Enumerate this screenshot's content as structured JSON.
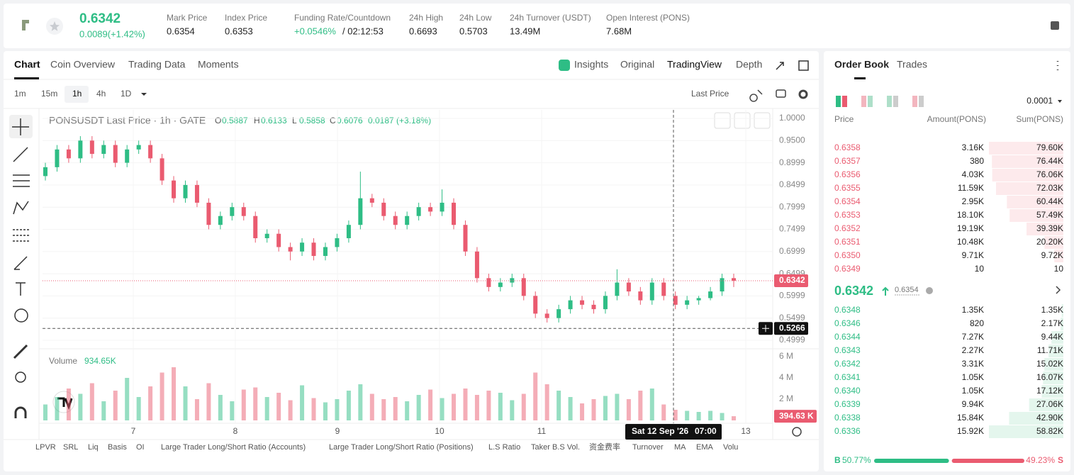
{
  "header": {
    "price": "0.6342",
    "change": "0.0089(+1.42%)",
    "stats": [
      {
        "label": "Mark Price",
        "value": "0.6354"
      },
      {
        "label": "Index Price",
        "value": "0.6353"
      },
      {
        "label": "24h High",
        "value": "0.6693"
      },
      {
        "label": "24h Low",
        "value": "0.5703"
      },
      {
        "label": "24h Turnover (USDT)",
        "value": "13.49M"
      },
      {
        "label": "Open Interest (PONS)",
        "value": "7.68M"
      }
    ],
    "funding": {
      "label": "Funding Rate/Countdown",
      "rate": "+0.0546%",
      "countdown": "/ 02:12:53"
    }
  },
  "tabs": [
    "Chart",
    "Coin Overview",
    "Trading Data",
    "Moments"
  ],
  "view_tabs": [
    "Insights",
    "Original",
    "TradingView",
    "Depth"
  ],
  "intervals": [
    "1m",
    "15m",
    "1h",
    "4h",
    "1D"
  ],
  "price_type": "Last Price",
  "legend": {
    "symbol": "PONSUSDT Last Price · 1h · GATE",
    "ohlc": [
      {
        "k": "O",
        "v": "0.5887"
      },
      {
        "k": "H",
        "v": "0.6133"
      },
      {
        "k": "L",
        "v": "0.5858"
      },
      {
        "k": "C",
        "v": "0.6076"
      }
    ],
    "change": "0.0187 (+3.18%)"
  },
  "volume_legend": {
    "label": "Volume",
    "value": "934.65K"
  },
  "indicators": [
    "LPVR",
    "SRL",
    "Liq",
    "Basis",
    "OI",
    "Large Trader Long/Short Ratio (Accounts)",
    "Large Trader Long/Short Ratio (Positions)",
    "L.S Ratio",
    "Taker B.S Vol.",
    "资金费率",
    "Turnover",
    "MA",
    "EMA",
    "Volu"
  ],
  "chart_data": {
    "type": "candlestick",
    "ylim": [
      0.4999,
      1.0
    ],
    "yticks": [
      {
        "value": 1,
        "label": "1.0000"
      },
      {
        "value": 0.95,
        "label": "0.9500"
      },
      0.8999,
      0.8499,
      0.7999,
      0.7499,
      0.6999,
      0.6499,
      0.5999,
      0.5499,
      0.4999
    ],
    "x_labels": [
      "7",
      "8",
      "9",
      "10",
      "11",
      "13"
    ],
    "crosshair": {
      "date": "Sat 12 Sep '26",
      "time": "07:00",
      "price": 0.5266
    },
    "last_price": 0.6342,
    "last_price_label": "0.6342",
    "crosshair_price_label": "0.5266",
    "up_color": "#2ebd85",
    "down_color": "#ea5b70",
    "open": [
      0.87,
      0.89,
      0.93,
      0.91,
      0.95,
      0.92,
      0.94,
      0.9,
      0.93,
      0.94,
      0.91,
      0.86,
      0.82,
      0.85,
      0.81,
      0.76,
      0.78,
      0.8,
      0.78,
      0.73,
      0.74,
      0.71,
      0.7,
      0.72,
      0.69,
      0.71,
      0.73,
      0.76,
      0.82,
      0.81,
      0.78,
      0.76,
      0.78,
      0.8,
      0.79,
      0.81,
      0.76,
      0.7,
      0.64,
      0.62,
      0.63,
      0.64,
      0.6,
      0.56,
      0.55,
      0.57,
      0.59,
      0.58,
      0.57,
      0.6,
      0.63,
      0.61,
      0.59,
      0.63,
      0.6,
      0.58,
      0.59,
      0.595,
      0.61,
      0.64
    ],
    "high": [
      0.9,
      0.94,
      0.94,
      0.96,
      0.96,
      0.95,
      0.95,
      0.94,
      0.95,
      0.95,
      0.92,
      0.87,
      0.86,
      0.86,
      0.82,
      0.79,
      0.81,
      0.81,
      0.79,
      0.75,
      0.75,
      0.72,
      0.73,
      0.73,
      0.72,
      0.74,
      0.77,
      0.88,
      0.83,
      0.82,
      0.79,
      0.79,
      0.81,
      0.81,
      0.84,
      0.82,
      0.77,
      0.71,
      0.65,
      0.64,
      0.65,
      0.65,
      0.61,
      0.57,
      0.58,
      0.6,
      0.6,
      0.59,
      0.61,
      0.66,
      0.64,
      0.62,
      0.64,
      0.64,
      0.61,
      0.6,
      0.6,
      0.62,
      0.65,
      0.65
    ],
    "low": [
      0.86,
      0.88,
      0.9,
      0.9,
      0.91,
      0.91,
      0.89,
      0.89,
      0.92,
      0.9,
      0.85,
      0.81,
      0.81,
      0.8,
      0.75,
      0.75,
      0.77,
      0.77,
      0.72,
      0.72,
      0.7,
      0.68,
      0.69,
      0.68,
      0.68,
      0.7,
      0.72,
      0.75,
      0.8,
      0.77,
      0.75,
      0.75,
      0.77,
      0.78,
      0.78,
      0.75,
      0.69,
      0.63,
      0.61,
      0.61,
      0.62,
      0.59,
      0.55,
      0.54,
      0.54,
      0.56,
      0.57,
      0.56,
      0.56,
      0.59,
      0.6,
      0.58,
      0.58,
      0.59,
      0.57,
      0.57,
      0.58,
      0.59,
      0.6,
      0.62
    ],
    "close": [
      0.89,
      0.93,
      0.91,
      0.95,
      0.92,
      0.94,
      0.9,
      0.93,
      0.94,
      0.91,
      0.86,
      0.82,
      0.85,
      0.81,
      0.76,
      0.78,
      0.8,
      0.78,
      0.73,
      0.74,
      0.71,
      0.7,
      0.72,
      0.69,
      0.71,
      0.73,
      0.76,
      0.82,
      0.81,
      0.78,
      0.76,
      0.78,
      0.8,
      0.79,
      0.81,
      0.76,
      0.7,
      0.64,
      0.62,
      0.63,
      0.64,
      0.6,
      0.56,
      0.55,
      0.57,
      0.59,
      0.58,
      0.57,
      0.6,
      0.63,
      0.61,
      0.59,
      0.63,
      0.6,
      0.58,
      0.59,
      0.595,
      0.61,
      0.64,
      0.6342
    ],
    "volume": [
      1.5,
      2.2,
      3.0,
      2.5,
      3.5,
      1.8,
      2.8,
      4.0,
      2.2,
      3.2,
      4.5,
      5.0,
      3.2,
      2.0,
      3.5,
      2.4,
      1.8,
      2.9,
      3.1,
      2.2,
      2.6,
      1.9,
      3.3,
      2.1,
      1.7,
      2.0,
      2.8,
      3.4,
      2.5,
      2.0,
      2.2,
      1.8,
      2.4,
      2.9,
      2.1,
      2.5,
      3.0,
      2.4,
      2.8,
      2.6,
      1.9,
      2.5,
      4.5,
      3.4,
      2.8,
      2.2,
      1.6,
      2.0,
      2.3,
      2.5,
      2.0,
      2.8,
      3.0,
      1.5,
      1.0,
      0.9,
      0.8,
      0.9,
      0.7,
      0.39463
    ],
    "volume_last_label": "394.63 K",
    "vlim": [
      0,
      6
    ],
    "vticks": [
      {
        "value": 6,
        "label": "6 M"
      },
      {
        "value": 4,
        "label": "4 M"
      },
      {
        "value": 2,
        "label": "2 M"
      }
    ]
  },
  "order_book": {
    "tabs": [
      "Order Book",
      "Trades"
    ],
    "precision": "0.0001",
    "columns": [
      "Price",
      "Amount(PONS)",
      "Sum(PONS)"
    ],
    "asks": [
      {
        "price": "0.6358",
        "amount": "3.16K",
        "sum": "79.60K",
        "depth": 79.6
      },
      {
        "price": "0.6357",
        "amount": "380",
        "sum": "76.44K",
        "depth": 76.44
      },
      {
        "price": "0.6356",
        "amount": "4.03K",
        "sum": "76.06K",
        "depth": 76.06
      },
      {
        "price": "0.6355",
        "amount": "11.59K",
        "sum": "72.03K",
        "depth": 72.03
      },
      {
        "price": "0.6354",
        "amount": "2.95K",
        "sum": "60.44K",
        "depth": 60.44
      },
      {
        "price": "0.6353",
        "amount": "18.10K",
        "sum": "57.49K",
        "depth": 57.49
      },
      {
        "price": "0.6352",
        "amount": "19.19K",
        "sum": "39.39K",
        "depth": 39.39
      },
      {
        "price": "0.6351",
        "amount": "10.48K",
        "sum": "20.20K",
        "depth": 20.2
      },
      {
        "price": "0.6350",
        "amount": "9.71K",
        "sum": "9.72K",
        "depth": 9.72
      },
      {
        "price": "0.6349",
        "amount": "10",
        "sum": "10",
        "depth": 0.01
      }
    ],
    "last": "0.6342",
    "mark": "0.6354",
    "bids": [
      {
        "price": "0.6348",
        "amount": "1.35K",
        "sum": "1.35K",
        "depth": 1.35
      },
      {
        "price": "0.6346",
        "amount": "820",
        "sum": "2.17K",
        "depth": 2.17
      },
      {
        "price": "0.6344",
        "amount": "7.27K",
        "sum": "9.44K",
        "depth": 9.44
      },
      {
        "price": "0.6343",
        "amount": "2.27K",
        "sum": "11.71K",
        "depth": 11.71
      },
      {
        "price": "0.6342",
        "amount": "3.31K",
        "sum": "15.02K",
        "depth": 15.02
      },
      {
        "price": "0.6341",
        "amount": "1.05K",
        "sum": "16.07K",
        "depth": 16.07
      },
      {
        "price": "0.6340",
        "amount": "1.05K",
        "sum": "17.12K",
        "depth": 17.12
      },
      {
        "price": "0.6339",
        "amount": "9.94K",
        "sum": "27.06K",
        "depth": 27.06
      },
      {
        "price": "0.6338",
        "amount": "15.84K",
        "sum": "42.90K",
        "depth": 42.9
      },
      {
        "price": "0.6336",
        "amount": "15.92K",
        "sum": "58.82K",
        "depth": 58.82
      }
    ],
    "buy_ratio": {
      "side": "B",
      "value": 50.77,
      "label": "50.77%"
    },
    "sell_ratio": {
      "side": "S",
      "value": 49.23,
      "label": "49.23%"
    }
  }
}
